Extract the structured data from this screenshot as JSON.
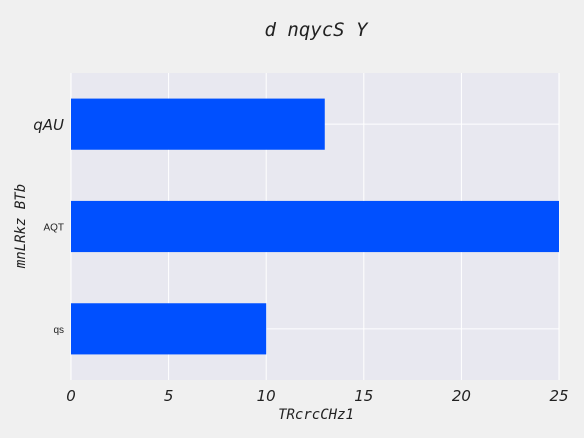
{
  "chart_data": {
    "type": "bar",
    "orientation": "horizontal",
    "title": "d nqycS Y",
    "xlabel": "TRcrcCHz1",
    "ylabel": "mnLRkz BTb",
    "categories": [
      "qAU",
      "AQT",
      "qs"
    ],
    "values": [
      13,
      25,
      10
    ],
    "xlim": [
      0,
      25
    ],
    "xticks": [
      0,
      5,
      10,
      15,
      20,
      25
    ],
    "grid": true,
    "bar_color": "#0050ff",
    "plot_background": "#e8e8f0",
    "background": "#f0f0f0"
  }
}
